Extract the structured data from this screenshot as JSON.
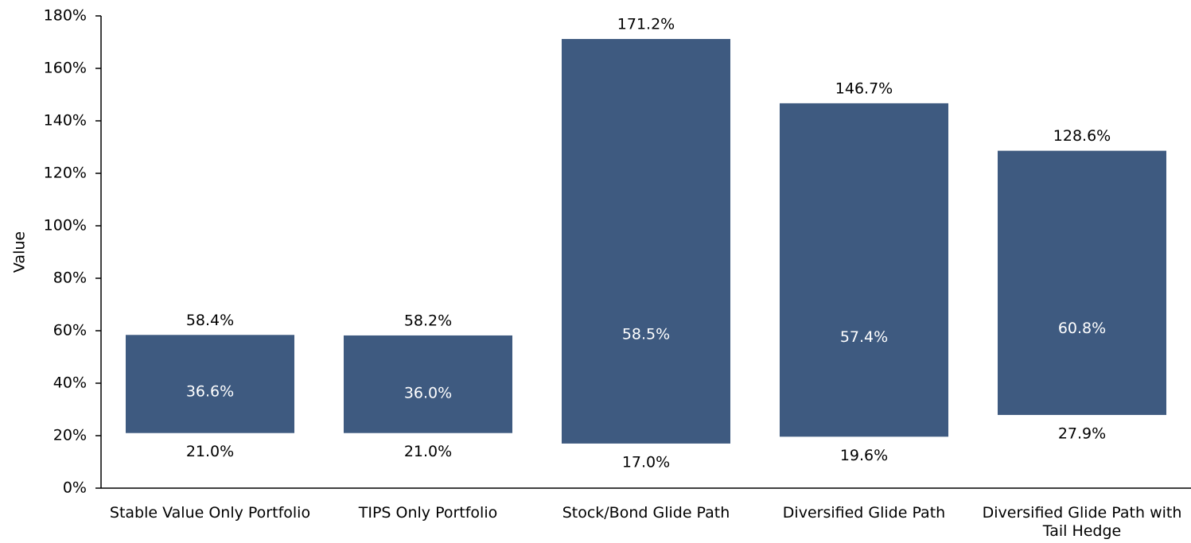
{
  "chart_data": {
    "type": "floating_bar",
    "ylabel": "Value",
    "categories": [
      "Stable Value Only Portfolio",
      "TIPS Only Portfolio",
      "Stock/Bond Glide Path",
      "Diversified Glide Path",
      "Diversified Glide Path with Tail Hedge"
    ],
    "low": [
      21.0,
      21.0,
      17.0,
      19.6,
      27.9
    ],
    "low_value_labels": [
      "21.0%",
      "21.0%",
      "17.0%",
      "19.6%",
      "27.9%"
    ],
    "high": [
      58.4,
      58.2,
      171.2,
      146.7,
      128.6
    ],
    "high_value_labels": [
      "58.4%",
      "58.2%",
      "171.2%",
      "146.7%",
      "128.6%"
    ],
    "mid": [
      36.6,
      36.0,
      58.5,
      57.4,
      60.8
    ],
    "mid_value_labels": [
      "36.6%",
      "36.0%",
      "58.5%",
      "57.4%",
      "60.8%"
    ],
    "color": "#3e5a80",
    "ylim": [
      0,
      180
    ],
    "yticks": [
      {
        "value": 0,
        "label": "0%"
      },
      {
        "value": 20,
        "label": "20%"
      },
      {
        "value": 40,
        "label": "40%"
      },
      {
        "value": 60,
        "label": "60%"
      },
      {
        "value": 80,
        "label": "80%"
      },
      {
        "value": 100,
        "label": "100%"
      },
      {
        "value": 120,
        "label": "120%"
      },
      {
        "value": 140,
        "label": "140%"
      },
      {
        "value": 160,
        "label": "160%"
      },
      {
        "value": 180,
        "label": "180%"
      }
    ]
  }
}
